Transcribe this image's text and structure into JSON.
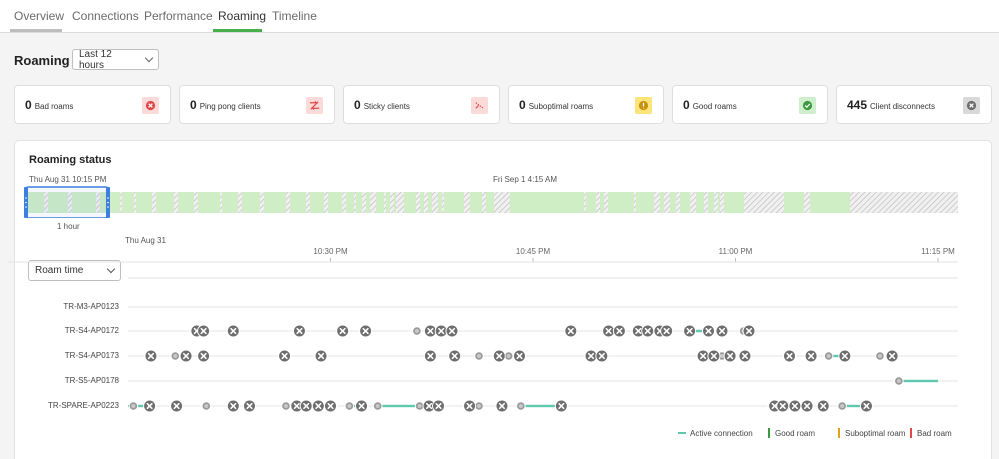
{
  "tabs": [
    {
      "label": "Overview",
      "active": false
    },
    {
      "label": "Connections",
      "active": false
    },
    {
      "label": "Performance",
      "active": false
    },
    {
      "label": "Roaming",
      "active": true
    },
    {
      "label": "Timeline",
      "active": false
    }
  ],
  "page": {
    "title": "Roaming",
    "range_select": "Last 12 hours"
  },
  "summary": [
    {
      "value": "0",
      "label": "Bad roams",
      "icon": "bad-roam-icon",
      "color": "#e04848",
      "bg": "#fbdada"
    },
    {
      "value": "0",
      "label": "Ping pong clients",
      "icon": "ping-pong-icon",
      "color": "#e04848",
      "bg": "#fbdada"
    },
    {
      "value": "0",
      "label": "Sticky clients",
      "icon": "sticky-icon",
      "color": "#e04848",
      "bg": "#fbdada"
    },
    {
      "value": "0",
      "label": "Suboptimal roams",
      "icon": "suboptimal-icon",
      "color": "#b8860b",
      "bg": "#fbe47a"
    },
    {
      "value": "0",
      "label": "Good roams",
      "icon": "good-roam-icon",
      "color": "#3a9a3d",
      "bg": "#cfeecd"
    },
    {
      "value": "445",
      "label": "Client disconnects",
      "icon": "disconnect-icon",
      "color": "#6b6b6b",
      "bg": "#d9d9d9"
    }
  ],
  "roaming_status": {
    "title": "Roaming status",
    "overview_start": "Thu Aug 31 10:15 PM",
    "overview_mid": "Fri Sep 1 4:15 AM",
    "window_label": "1 hour",
    "date_label": "Thu Aug 31",
    "metric_select": "Roam time",
    "time_ticks": [
      "10:30 PM",
      "10:45 PM",
      "11:00 PM",
      "11:15 PM"
    ],
    "legend": [
      {
        "label": "Active connection",
        "color": "#5fc9b0"
      },
      {
        "label": "Good roam",
        "color": "#3a9a3d"
      },
      {
        "label": "Suboptimal roam",
        "color": "#e3a21a"
      },
      {
        "label": "Bad roam",
        "color": "#e04848"
      }
    ],
    "colors": {
      "connected": "#cfeec6",
      "marker": "#6e6e6e",
      "window": "#3d7fe0"
    }
  },
  "chart_data": {
    "type": "timeline",
    "x_unit": "minutes after 10:15 PM",
    "x_ticks": [
      {
        "label": "10:30 PM",
        "value": 15
      },
      {
        "label": "10:45 PM",
        "value": 30
      },
      {
        "label": "11:00 PM",
        "value": 45
      },
      {
        "label": "11:15 PM",
        "value": 60
      }
    ],
    "series": [
      {
        "name": "TR-M3-AP0123",
        "disconnects": [],
        "connects": [],
        "active": []
      },
      {
        "name": "TR-S4-AP0172",
        "disconnects": [
          5.1,
          5.6,
          7.8,
          12.7,
          15.9,
          17.6,
          22.4,
          23.2,
          24.0,
          32.8,
          35.6,
          36.4,
          37.8,
          38.5,
          39.4,
          39.9,
          41.6,
          43.0,
          44.0,
          46.0
        ],
        "connects": [
          5.1,
          7.8,
          17.6,
          21.4,
          32.8,
          38.5,
          39.4,
          39.9,
          45.6
        ],
        "active": [
          [
            41.6,
            43.0
          ]
        ]
      },
      {
        "name": "TR-S4-AP0173",
        "disconnects": [
          1.7,
          4.3,
          5.6,
          11.6,
          14.3,
          22.4,
          24.2,
          27.5,
          29.0,
          34.3,
          35.1,
          42.6,
          43.4,
          44.6,
          45.7,
          49.0,
          50.6,
          53.1,
          56.6
        ],
        "connects": [
          3.5,
          26.0,
          28.2,
          42.8,
          44.0,
          44.7,
          51.9,
          55.7
        ],
        "active": [
          [
            3.5,
            4.3
          ],
          [
            27.5,
            28.2
          ],
          [
            51.9,
            53.1
          ]
        ]
      },
      {
        "name": "TR-S5-AP0178",
        "disconnects": [],
        "connects": [
          57.1
        ],
        "active": [
          [
            57.1,
            60.0
          ]
        ]
      },
      {
        "name": "TR-SPARE-AP0223",
        "disconnects": [
          1.6,
          3.6,
          7.8,
          9.0,
          12.5,
          13.2,
          14.1,
          15.0,
          17.3,
          22.3,
          23.0,
          25.3,
          27.7,
          32.1,
          47.9,
          48.5,
          49.4,
          50.3,
          51.5,
          54.7
        ],
        "connects": [
          0.4,
          5.8,
          11.7,
          16.4,
          18.5,
          21.6,
          26.0,
          29.1,
          47.7,
          48.8,
          52.9
        ],
        "active": [
          [
            0.0,
            1.6
          ],
          [
            16.4,
            17.3
          ],
          [
            18.5,
            22.3
          ],
          [
            29.1,
            32.1
          ],
          [
            52.9,
            54.7
          ]
        ]
      }
    ]
  }
}
